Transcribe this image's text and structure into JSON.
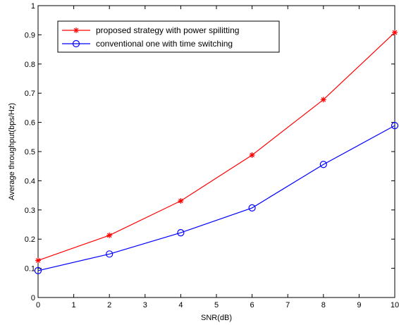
{
  "chart_data": {
    "type": "line",
    "title": "",
    "xlabel": "SNR(dB)",
    "ylabel": "Average throughput(bps/Hz)",
    "xlim": [
      0,
      10
    ],
    "ylim": [
      0,
      1
    ],
    "xticks": [
      0,
      1,
      2,
      3,
      4,
      5,
      6,
      7,
      8,
      9,
      10
    ],
    "yticks": [
      0,
      0.1,
      0.2,
      0.3,
      0.4,
      0.5,
      0.6,
      0.7,
      0.8,
      0.9,
      1
    ],
    "grid": false,
    "legend_position": "top-left",
    "series": [
      {
        "name": "proposed strategy with power spilitting",
        "color": "#ff0000",
        "marker": "asterisk",
        "x": [
          0,
          2,
          4,
          6,
          8,
          10
        ],
        "y": [
          0.127,
          0.213,
          0.331,
          0.488,
          0.678,
          0.908
        ]
      },
      {
        "name": "conventional one with time switching",
        "color": "#0000ff",
        "marker": "circle",
        "x": [
          0,
          2,
          4,
          6,
          8,
          10
        ],
        "y": [
          0.092,
          0.149,
          0.222,
          0.307,
          0.456,
          0.589
        ]
      }
    ]
  }
}
